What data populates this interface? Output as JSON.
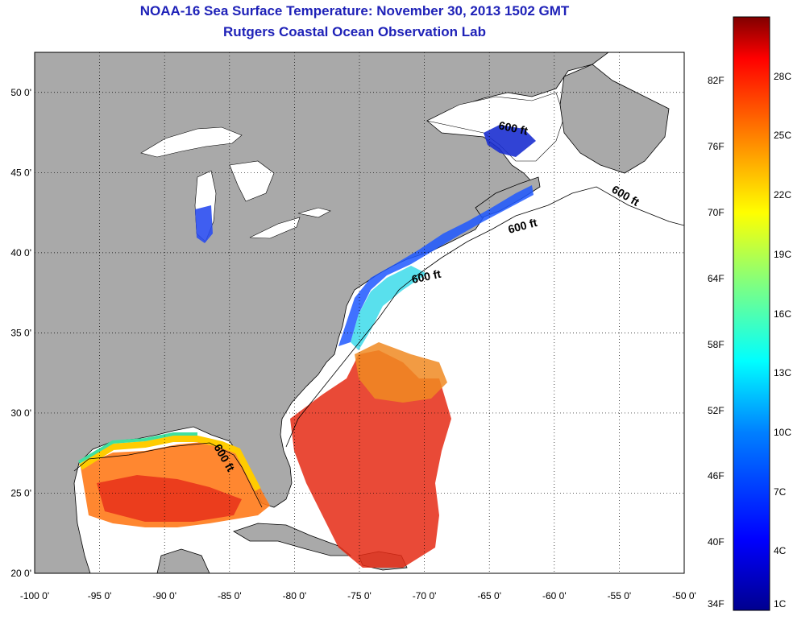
{
  "title": {
    "line1": "NOAA-16 Sea Surface Temperature:  November 30, 2013 1502 GMT",
    "line2": "Rutgers Coastal Ocean Observation Lab"
  },
  "map": {
    "lon_range": [
      -100,
      -50
    ],
    "lat_range": [
      20,
      52.5
    ],
    "x_ticks": [
      "-100 0'",
      "-95 0'",
      "-90 0'",
      "-85 0'",
      "-80 0'",
      "-75 0'",
      "-70 0'",
      "-65 0'",
      "-60 0'",
      "-55 0'",
      "-50 0'"
    ],
    "y_ticks": [
      "50 0'",
      "45 0'",
      "40 0'",
      "35 0'",
      "30 0'",
      "25 0'",
      "20 0'"
    ],
    "contour_label": "600 ft",
    "colors": {
      "land": "#a9a9a9",
      "ocean": "#ffffff",
      "coast": "#000000"
    }
  },
  "colorbar": {
    "fahrenheit": [
      "82F",
      "76F",
      "70F",
      "64F",
      "58F",
      "52F",
      "46F",
      "40F",
      "34F"
    ],
    "celsius": [
      "28C",
      "25C",
      "22C",
      "19C",
      "16C",
      "13C",
      "10C",
      "7C",
      "4C",
      "1C"
    ],
    "range_c": [
      1,
      31
    ],
    "gradient": [
      "#00008f",
      "#0000ff",
      "#0080ff",
      "#00ffff",
      "#80ff80",
      "#ffff00",
      "#ff8000",
      "#ff0000",
      "#800000"
    ]
  }
}
